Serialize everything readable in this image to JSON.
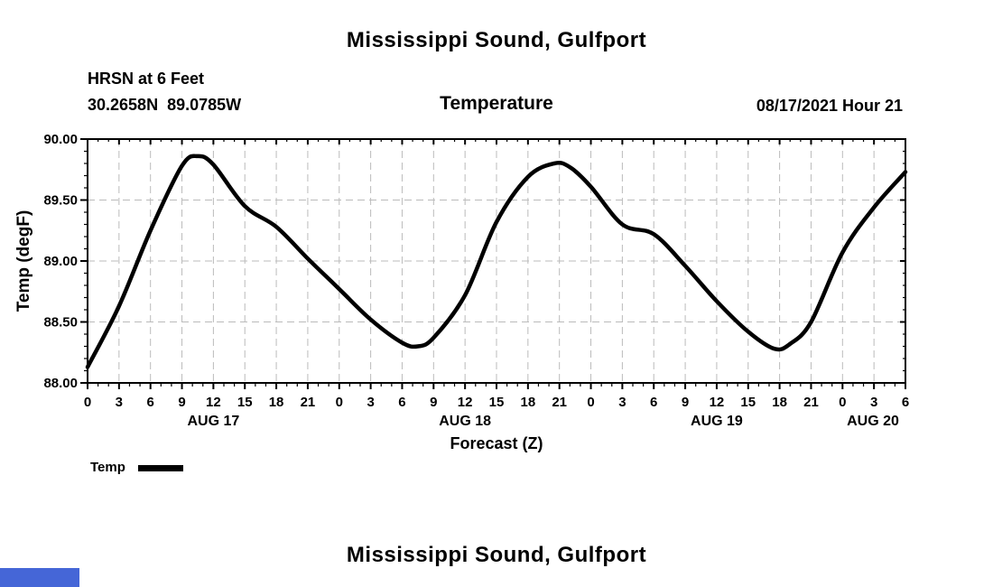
{
  "page": {
    "top_title": "Mississippi Sound, Gulfport",
    "station_name": "HRSN at 6 Feet",
    "station_coords": "30.2658N  89.0785W",
    "chart_heading": "Temperature",
    "datetime_label": "08/17/2021 Hour 21",
    "bottom_title": "Mississippi Sound, Gulfport"
  },
  "legend": {
    "label": "Temp"
  },
  "colors": {
    "line": "#000000",
    "grid": "#bbbbbb",
    "frame": "#000000",
    "background": "#ffffff",
    "corner_bar": "#4566d7"
  },
  "chart_data": {
    "type": "line",
    "title": "Temperature",
    "xlabel": "Forecast (Z)",
    "ylabel": "Temp (degF)",
    "xlim_hours": [
      0,
      78
    ],
    "ylim": [
      88.0,
      90.0
    ],
    "grid": "dashed",
    "legend_position": "bottom-left",
    "y_ticks": [
      {
        "value": 88.0,
        "label": "88.00"
      },
      {
        "value": 88.5,
        "label": "88.50"
      },
      {
        "value": 89.0,
        "label": "89.00"
      },
      {
        "value": 89.5,
        "label": "89.50"
      },
      {
        "value": 90.0,
        "label": "90.00"
      }
    ],
    "y_minor_step": 0.1,
    "x_tick_step_hours": 3,
    "x_minor_step_hours": 1,
    "x_tick_labels": [
      "0",
      "3",
      "6",
      "9",
      "12",
      "15",
      "18",
      "21",
      "0",
      "3",
      "6",
      "9",
      "12",
      "15",
      "18",
      "21",
      "0",
      "3",
      "6",
      "9",
      "12",
      "15",
      "18",
      "21",
      "0",
      "3",
      "6"
    ],
    "date_labels": [
      {
        "label": "AUG 17",
        "hour": 12
      },
      {
        "label": "AUG 18",
        "hour": 36
      },
      {
        "label": "AUG 19",
        "hour": 60
      },
      {
        "label": "AUG 20",
        "hour": 74.9
      }
    ],
    "series": [
      {
        "name": "Temp",
        "color": "#000000",
        "x_hours": [
          0,
          3,
          6,
          9,
          10.5,
          12,
          15,
          18,
          21,
          24,
          27,
          30,
          31.5,
          33,
          36,
          39,
          42,
          44.5,
          46,
          48,
          51,
          54,
          57,
          60,
          63,
          65.5,
          67,
          69,
          72,
          75,
          78
        ],
        "values": [
          88.13,
          88.63,
          89.25,
          89.78,
          89.86,
          89.79,
          89.45,
          89.28,
          89.02,
          88.77,
          88.52,
          88.33,
          88.3,
          88.37,
          88.72,
          89.32,
          89.69,
          89.8,
          89.77,
          89.61,
          89.3,
          89.22,
          88.96,
          88.67,
          88.42,
          88.28,
          88.32,
          88.5,
          89.07,
          89.44,
          89.73
        ]
      }
    ]
  }
}
